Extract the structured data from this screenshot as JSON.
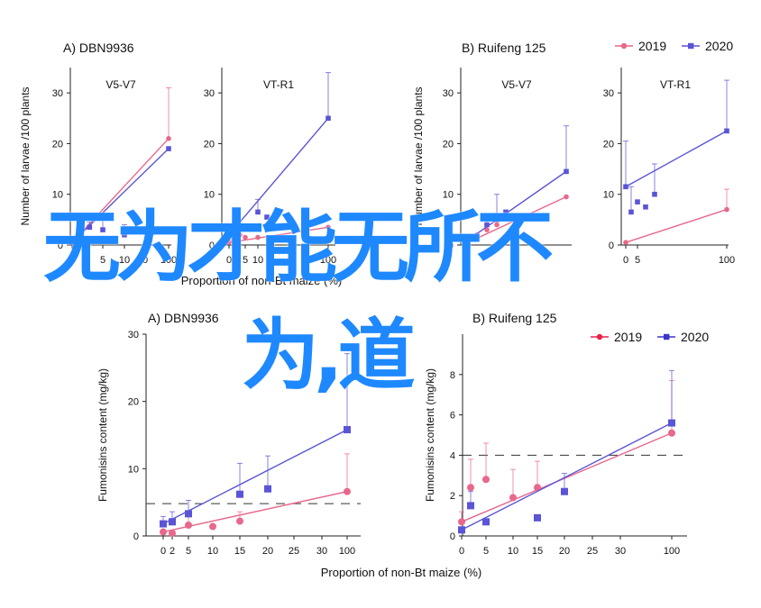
{
  "overlay": {
    "line1": "无为才能无所不",
    "line2": "为,道"
  },
  "legend_top": [
    "2019",
    "2020"
  ],
  "legend_bottom": [
    "2019",
    "2020"
  ],
  "chart_data": [
    {
      "type": "line",
      "panel_title": "A)  DBN9936",
      "subplot_title": "V5-V7",
      "ylabel": "Number of larvae /100 plants",
      "xlabel": "",
      "ylim": [
        0,
        35
      ],
      "yticks": [
        0,
        10,
        20,
        30
      ],
      "xticks": [
        0,
        5,
        10,
        30,
        100
      ],
      "series": [
        {
          "name": "2019",
          "color": "#e8678a",
          "marker": "circle",
          "x": [
            0,
            2,
            100
          ],
          "y": [
            0.5,
            1,
            21
          ],
          "err": [
            0,
            0,
            10
          ]
        },
        {
          "name": "2020",
          "color": "#5a54d6",
          "marker": "square",
          "x": [
            0,
            3,
            5,
            10,
            100
          ],
          "y": [
            0.5,
            3.5,
            3,
            2,
            19
          ],
          "err": [
            0,
            1,
            3,
            2,
            0
          ]
        }
      ]
    },
    {
      "type": "line",
      "panel_title": "",
      "subplot_title": "VT-R1",
      "ylabel": "",
      "xlabel": "Proportion of non-Bt maize (%)",
      "ylim": [
        0,
        35
      ],
      "yticks": [
        0,
        10,
        20,
        30
      ],
      "xticks": [
        0,
        5,
        10,
        100
      ],
      "series": [
        {
          "name": "2019",
          "color": "#e8678a",
          "marker": "circle",
          "x": [
            0,
            1,
            3,
            5,
            10,
            100
          ],
          "y": [
            0.5,
            1,
            2,
            1.5,
            1.5,
            3.5
          ],
          "err": [
            0,
            0,
            1,
            0,
            0,
            0
          ]
        },
        {
          "name": "2020",
          "color": "#5a54d6",
          "marker": "square",
          "x": [
            0,
            10,
            20,
            100
          ],
          "y": [
            2,
            6.5,
            5.5,
            25
          ],
          "err": [
            0,
            2.5,
            0,
            9
          ]
        }
      ]
    },
    {
      "type": "line",
      "panel_title": "B)  Ruifeng 125",
      "subplot_title": "V5-V7",
      "ylabel": "Number of larvae /100 plants",
      "xlabel": "",
      "ylim": [
        0,
        35
      ],
      "yticks": [
        0,
        10,
        20,
        30
      ],
      "xticks": [],
      "series": [
        {
          "name": "2019",
          "color": "#e8678a",
          "marker": "circle",
          "x": [
            0,
            2,
            5,
            10,
            100
          ],
          "y": [
            0.5,
            2,
            3,
            4,
            9.5
          ],
          "err": [
            0,
            0,
            1,
            0,
            0
          ]
        },
        {
          "name": "2020",
          "color": "#5a54d6",
          "marker": "square",
          "x": [
            0,
            5,
            10,
            20,
            100
          ],
          "y": [
            1,
            4,
            5,
            6.5,
            14.5
          ],
          "err": [
            0,
            1,
            5,
            0,
            9
          ]
        }
      ]
    },
    {
      "type": "line",
      "panel_title": "",
      "subplot_title": "VT-R1",
      "ylabel": "",
      "xlabel": "",
      "ylim": [
        0,
        35
      ],
      "yticks": [
        0,
        10,
        20,
        30
      ],
      "xticks": [
        0,
        5,
        100
      ],
      "series": [
        {
          "name": "2019",
          "color": "#e8678a",
          "marker": "circle",
          "x": [
            0,
            100
          ],
          "y": [
            0.5,
            7
          ],
          "err": [
            0,
            4
          ]
        },
        {
          "name": "2020",
          "color": "#5a54d6",
          "marker": "square",
          "x": [
            0,
            2,
            5,
            10,
            20,
            100
          ],
          "y": [
            11.5,
            6.5,
            8.5,
            7.5,
            10,
            22.5
          ],
          "err": [
            9,
            5,
            0,
            0,
            6,
            10
          ]
        }
      ]
    },
    {
      "type": "line",
      "panel_title": "A)  DBN9936",
      "subplot_title": "",
      "ylabel": "Fumonisins content (mg/kg)",
      "xlabel": "Proportion of non-Bt maize (%)",
      "ylim": [
        0,
        30
      ],
      "yticks": [
        0,
        10,
        20,
        30
      ],
      "xticks": [
        0,
        2,
        5,
        10,
        15,
        20,
        25,
        30,
        100
      ],
      "threshold": 4.8,
      "series": [
        {
          "name": "2019",
          "color": "#e8678a",
          "marker": "circle",
          "x": [
            0,
            2,
            5,
            10,
            15,
            100
          ],
          "y": [
            0.6,
            0.4,
            1.6,
            1.4,
            2.2,
            6.6
          ],
          "err": [
            0,
            0,
            1.4,
            0,
            1.4,
            5.6
          ]
        },
        {
          "name": "2020",
          "color": "#5a54d6",
          "marker": "square",
          "x": [
            0,
            2,
            5,
            15,
            20,
            100
          ],
          "y": [
            1.8,
            2.1,
            3.3,
            6.2,
            7,
            15.8
          ],
          "err": [
            1.1,
            1.5,
            2,
            4.6,
            4.9,
            11.3
          ]
        }
      ]
    },
    {
      "type": "line",
      "panel_title": "B)  Ruifeng 125",
      "subplot_title": "",
      "ylabel": "Fumonisins content (mg/kg)",
      "xlabel": "",
      "ylim": [
        0,
        10
      ],
      "yticks": [
        0,
        2,
        4,
        6,
        8
      ],
      "xticks": [
        0,
        5,
        10,
        15,
        20,
        25,
        30,
        100
      ],
      "threshold": 4,
      "series": [
        {
          "name": "2019",
          "color": "#e8678a",
          "marker": "circle",
          "x": [
            0,
            2,
            5,
            10,
            15,
            100
          ],
          "y": [
            0.7,
            2.4,
            2.8,
            1.9,
            2.4,
            5.1
          ],
          "err": [
            0.5,
            1.4,
            1.8,
            1.4,
            1.3,
            2.6
          ]
        },
        {
          "name": "2020",
          "color": "#5a54d6",
          "marker": "square",
          "x": [
            0,
            2,
            5,
            15,
            20,
            100
          ],
          "y": [
            0.3,
            1.5,
            0.7,
            0.9,
            2.2,
            5.6
          ],
          "err": [
            0,
            0.7,
            0,
            0,
            0.9,
            2.6
          ]
        }
      ]
    }
  ]
}
